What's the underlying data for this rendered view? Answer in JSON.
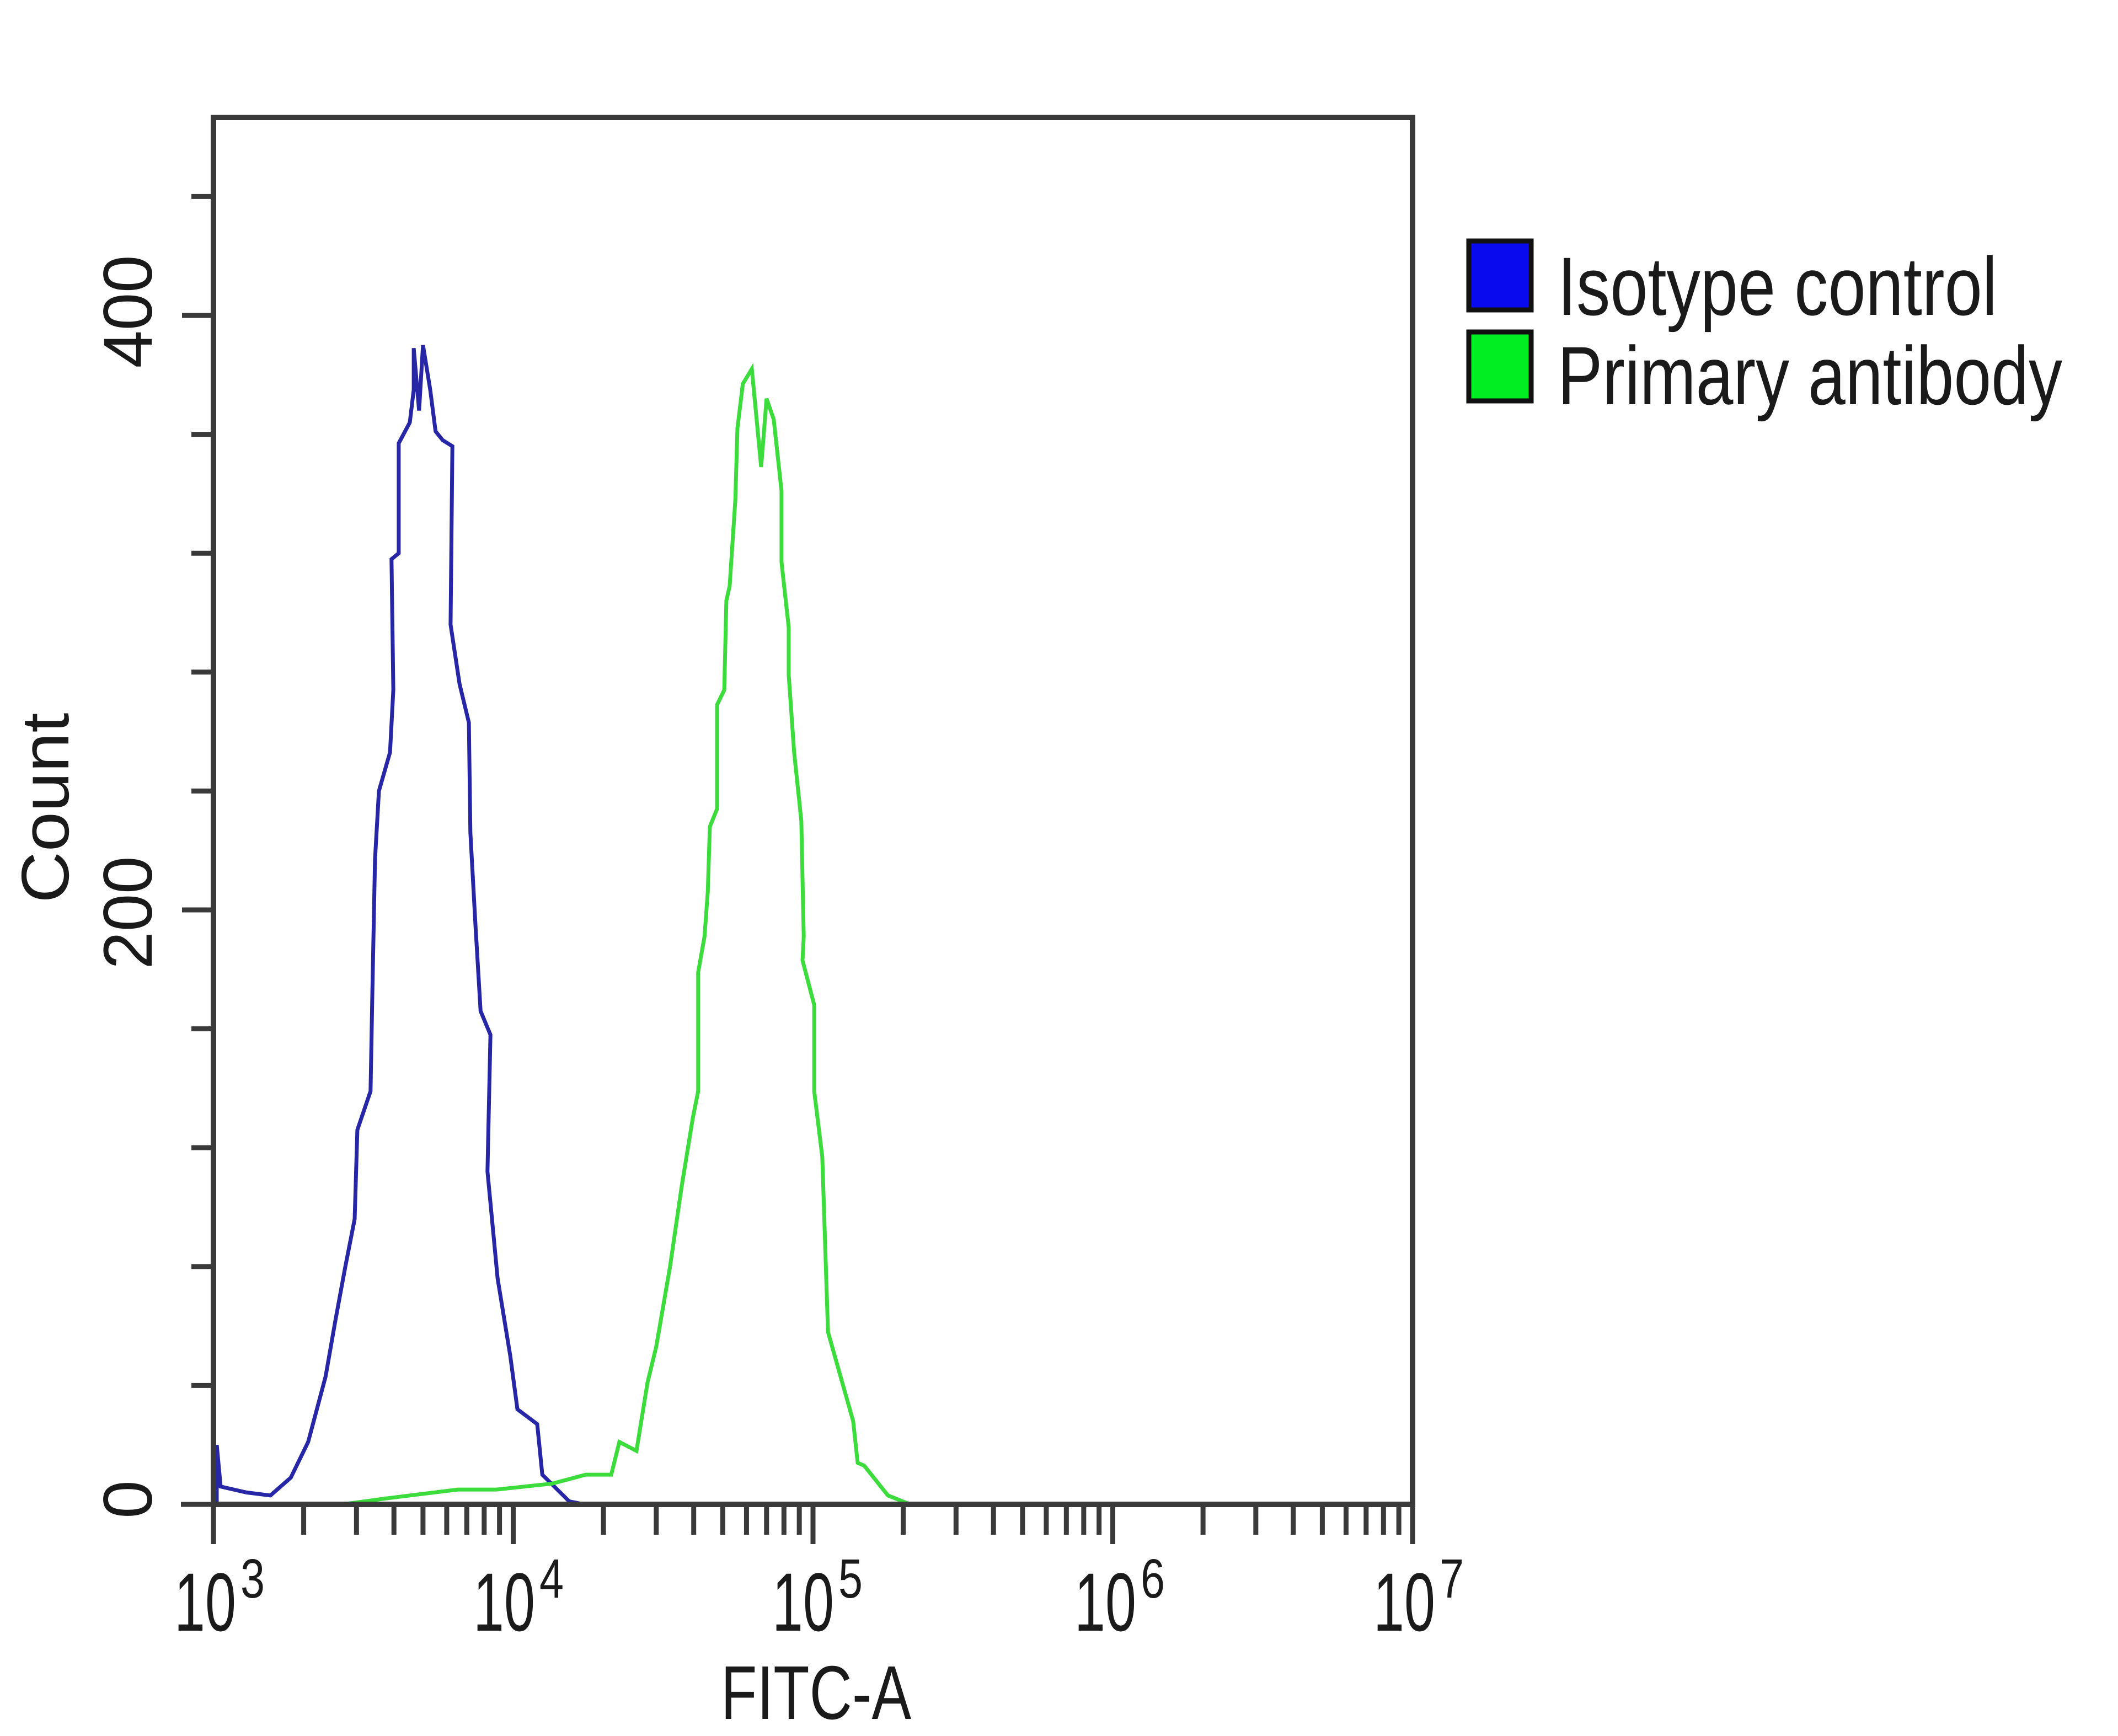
{
  "chart_data": {
    "type": "line",
    "subtype": "flow-cytometry-histogram",
    "title": "",
    "xlabel": "FITC-A",
    "ylabel": "Count",
    "xscale": "log",
    "xlim_log10": [
      3,
      7
    ],
    "ylim": [
      0,
      467
    ],
    "x_ticks": [
      {
        "base": "10",
        "exp": "3",
        "log10": 3
      },
      {
        "base": "10",
        "exp": "4",
        "log10": 4
      },
      {
        "base": "10",
        "exp": "5",
        "log10": 5
      },
      {
        "base": "10",
        "exp": "6",
        "log10": 6
      },
      {
        "base": "10",
        "exp": "7",
        "log10": 7
      }
    ],
    "y_ticks": [
      {
        "label": "0",
        "value": 0
      },
      {
        "label": "200",
        "value": 200
      },
      {
        "label": "400",
        "value": 400
      }
    ],
    "y_minor_step": 40,
    "y_minor_max": 440,
    "grid": false,
    "legend_position": "right-top",
    "series": [
      {
        "name": "Isotype control",
        "color": "#2626a6",
        "swatch_color": "#0a0aee",
        "peak_log10": 3.7,
        "peak_count": 390,
        "points_log10_count": [
          [
            3.011,
            0
          ],
          [
            3.011,
            20
          ],
          [
            3.024,
            6
          ],
          [
            3.11,
            4
          ],
          [
            3.19,
            3
          ],
          [
            3.258,
            9
          ],
          [
            3.316,
            21
          ],
          [
            3.374,
            43
          ],
          [
            3.407,
            62
          ],
          [
            3.44,
            80
          ],
          [
            3.471,
            96
          ],
          [
            3.48,
            126
          ],
          [
            3.524,
            139
          ],
          [
            3.53,
            172
          ],
          [
            3.539,
            217
          ],
          [
            3.552,
            240
          ],
          [
            3.589,
            253
          ],
          [
            3.6,
            274
          ],
          [
            3.594,
            318
          ],
          [
            3.618,
            320
          ],
          [
            3.618,
            357
          ],
          [
            3.655,
            364
          ],
          [
            3.668,
            375
          ],
          [
            3.668,
            389
          ],
          [
            3.686,
            368
          ],
          [
            3.699,
            390
          ],
          [
            3.723,
            375
          ],
          [
            3.741,
            361
          ],
          [
            3.765,
            358
          ],
          [
            3.797,
            356
          ],
          [
            3.791,
            296
          ],
          [
            3.821,
            276
          ],
          [
            3.852,
            263
          ],
          [
            3.857,
            226
          ],
          [
            3.874,
            195
          ],
          [
            3.891,
            166
          ],
          [
            3.924,
            158
          ],
          [
            3.914,
            112
          ],
          [
            3.948,
            76
          ],
          [
            3.99,
            50
          ],
          [
            4.014,
            32
          ],
          [
            4.08,
            27
          ],
          [
            4.097,
            10
          ],
          [
            4.187,
            1
          ],
          [
            4.238,
            0
          ],
          [
            7.0,
            0
          ]
        ]
      },
      {
        "name": "Primary antibody",
        "color": "#3bdc3b",
        "swatch_color": "#00ee22",
        "peak_log10": 4.8,
        "peak_count": 382,
        "points_log10_count": [
          [
            3.429,
            0
          ],
          [
            3.576,
            2
          ],
          [
            3.815,
            5
          ],
          [
            3.944,
            5
          ],
          [
            4.13,
            7
          ],
          [
            4.242,
            10
          ],
          [
            4.327,
            10
          ],
          [
            4.354,
            21
          ],
          [
            4.411,
            18
          ],
          [
            4.448,
            41
          ],
          [
            4.477,
            53
          ],
          [
            4.523,
            80
          ],
          [
            4.562,
            107
          ],
          [
            4.599,
            130
          ],
          [
            4.617,
            139
          ],
          [
            4.617,
            179
          ],
          [
            4.638,
            191
          ],
          [
            4.649,
            206
          ],
          [
            4.656,
            228
          ],
          [
            4.68,
            234
          ],
          [
            4.68,
            269
          ],
          [
            4.704,
            274
          ],
          [
            4.711,
            304
          ],
          [
            4.722,
            309
          ],
          [
            4.741,
            338
          ],
          [
            4.748,
            362
          ],
          [
            4.766,
            377
          ],
          [
            4.796,
            382
          ],
          [
            4.827,
            349
          ],
          [
            4.845,
            372
          ],
          [
            4.869,
            365
          ],
          [
            4.895,
            341
          ],
          [
            4.895,
            317
          ],
          [
            4.919,
            295
          ],
          [
            4.919,
            279
          ],
          [
            4.937,
            253
          ],
          [
            4.961,
            230
          ],
          [
            4.969,
            191
          ],
          [
            4.965,
            183
          ],
          [
            5.004,
            168
          ],
          [
            5.004,
            139
          ],
          [
            5.031,
            117
          ],
          [
            5.05,
            58
          ],
          [
            5.134,
            28
          ],
          [
            5.149,
            14
          ],
          [
            5.171,
            13
          ],
          [
            5.25,
            3
          ],
          [
            5.324,
            0
          ]
        ]
      }
    ]
  },
  "axes": {
    "x_label": "FITC-A",
    "y_label": "Count",
    "x_ticks": [
      {
        "base": "10",
        "exp": "3"
      },
      {
        "base": "10",
        "exp": "4"
      },
      {
        "base": "10",
        "exp": "5"
      },
      {
        "base": "10",
        "exp": "6"
      },
      {
        "base": "10",
        "exp": "7"
      }
    ],
    "y_ticks": [
      "0",
      "200",
      "400"
    ]
  },
  "legend": {
    "items": [
      {
        "label": "Isotype control",
        "color": "#0a0aee"
      },
      {
        "label": "Primary antibody",
        "color": "#00ee22"
      }
    ]
  }
}
